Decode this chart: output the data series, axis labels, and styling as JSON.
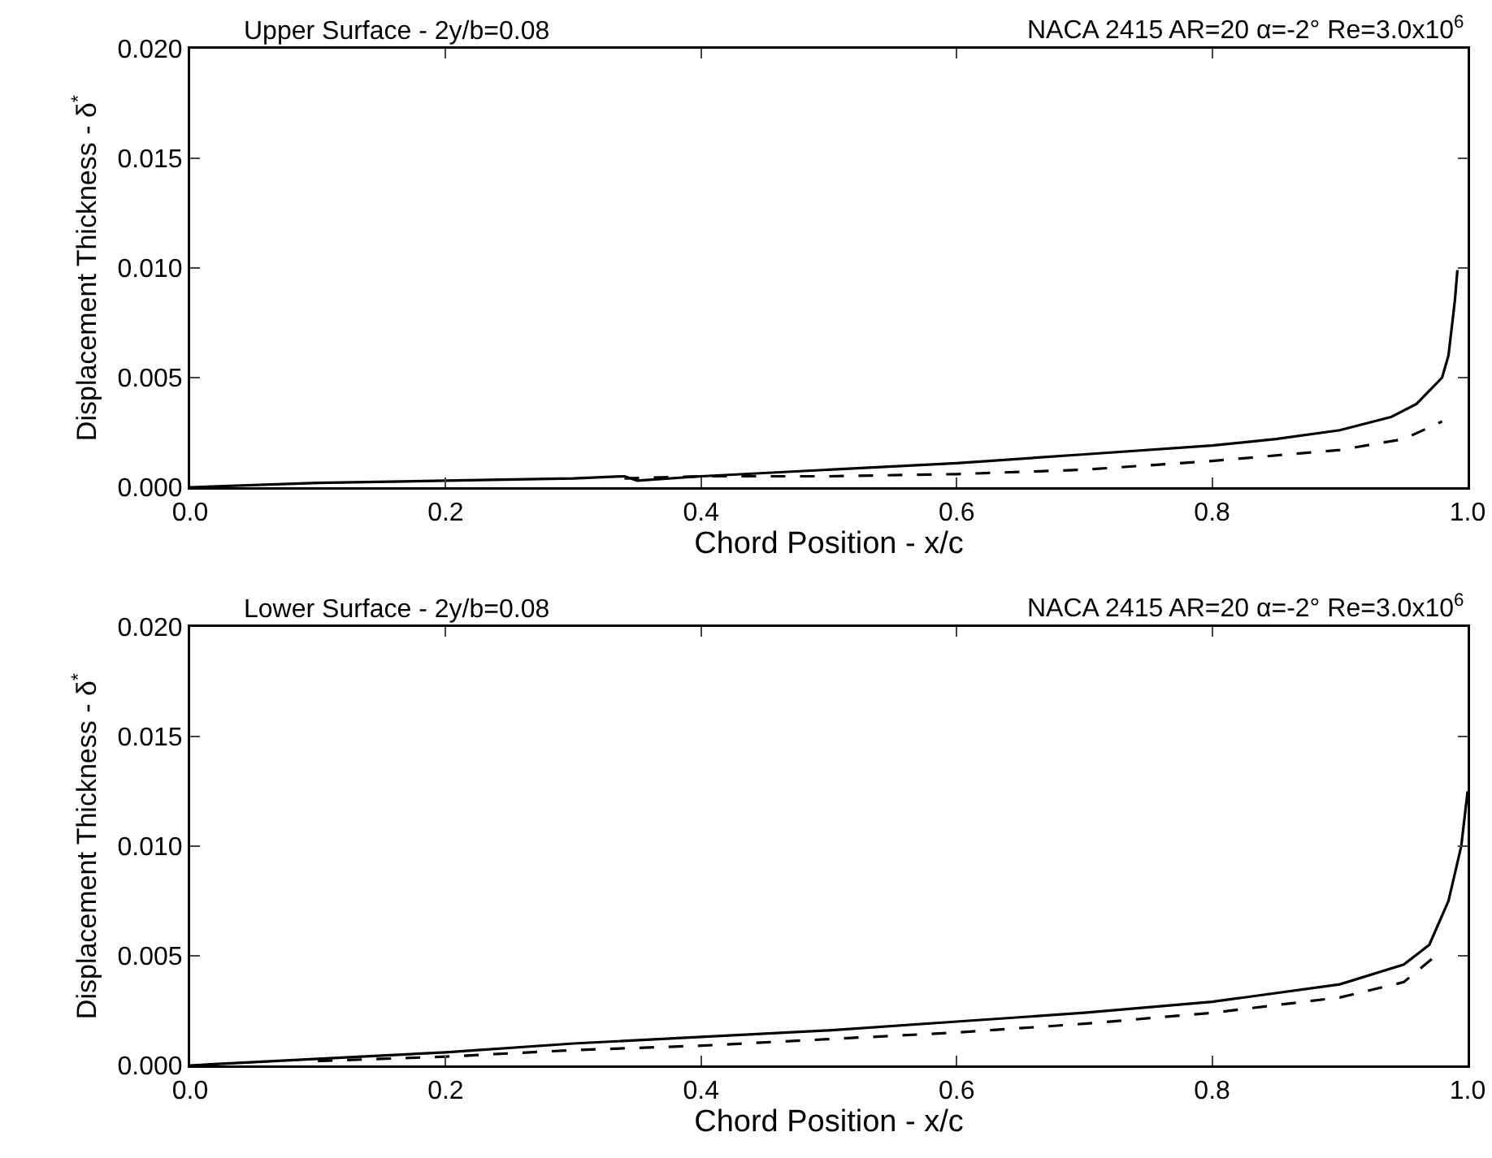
{
  "chart_data": [
    {
      "type": "line",
      "title": "Upper Surface - 2y/b=0.08",
      "subtitle": "NACA 2415 AR=20 α=-2° Re=3.0x10$^{6}$",
      "xlabel": "Chord Position - x/c",
      "ylabel": "Displacement Thickness - δ$^{*}$",
      "xlim": [
        0,
        1
      ],
      "ylim": [
        0,
        0.02
      ],
      "xticks": [
        {
          "value": 0,
          "label": "0.0"
        },
        {
          "value": 0.2,
          "label": "0.2"
        },
        {
          "value": 0.4,
          "label": "0.4"
        },
        {
          "value": 0.6,
          "label": "0.6"
        },
        {
          "value": 0.8,
          "label": "0.8"
        },
        {
          "value": 1,
          "label": "1.0"
        }
      ],
      "yticks": [
        {
          "value": 0,
          "label": "0.000"
        },
        {
          "value": 0.005,
          "label": "0.005"
        },
        {
          "value": 0.01,
          "label": "0.010"
        },
        {
          "value": 0.015,
          "label": "0.015"
        },
        {
          "value": 0.02,
          "label": "0.020"
        }
      ],
      "grid": false,
      "series": [
        {
          "color": "#000000",
          "line_style": "solid",
          "x": [
            0,
            0.1,
            0.2,
            0.3,
            0.34,
            0.35,
            0.4,
            0.5,
            0.6,
            0.7,
            0.8,
            0.85,
            0.9,
            0.94,
            0.96,
            0.98,
            0.985,
            0.99,
            0.992
          ],
          "values": [
            0,
            0.0002,
            0.0003,
            0.0004,
            0.0005,
            0.0003,
            0.0005,
            0.0008,
            0.0011,
            0.0015,
            0.0019,
            0.0022,
            0.0026,
            0.0032,
            0.0038,
            0.005,
            0.006,
            0.0085,
            0.0099
          ]
        },
        {
          "color": "#000000",
          "line_style": "dashed",
          "x": [
            0.34,
            0.4,
            0.5,
            0.6,
            0.7,
            0.8,
            0.9,
            0.95,
            0.98
          ],
          "values": [
            0.0004,
            0.0005,
            0.0005,
            0.0006,
            0.0008,
            0.0012,
            0.0017,
            0.0022,
            0.003
          ]
        }
      ]
    },
    {
      "type": "line",
      "title": "Lower Surface - 2y/b=0.08",
      "subtitle": "NACA 2415 AR=20 α=-2° Re=3.0x10$^{6}$",
      "xlabel": "Chord Position - x/c",
      "ylabel": "Displacement Thickness - δ$^{*}$",
      "xlim": [
        0,
        1
      ],
      "ylim": [
        0,
        0.02
      ],
      "xticks": [
        {
          "value": 0,
          "label": "0.0"
        },
        {
          "value": 0.2,
          "label": "0.2"
        },
        {
          "value": 0.4,
          "label": "0.4"
        },
        {
          "value": 0.6,
          "label": "0.6"
        },
        {
          "value": 0.8,
          "label": "0.8"
        },
        {
          "value": 1,
          "label": "1.0"
        }
      ],
      "yticks": [
        {
          "value": 0,
          "label": "0.000"
        },
        {
          "value": 0.005,
          "label": "0.005"
        },
        {
          "value": 0.01,
          "label": "0.010"
        },
        {
          "value": 0.015,
          "label": "0.015"
        },
        {
          "value": 0.02,
          "label": "0.020"
        }
      ],
      "grid": false,
      "series": [
        {
          "color": "#000000",
          "line_style": "solid",
          "x": [
            0,
            0.1,
            0.2,
            0.3,
            0.4,
            0.5,
            0.6,
            0.7,
            0.8,
            0.9,
            0.95,
            0.97,
            0.985,
            0.995,
            1
          ],
          "values": [
            0,
            0.0003,
            0.0006,
            0.001,
            0.0013,
            0.0016,
            0.002,
            0.0024,
            0.0029,
            0.0037,
            0.0046,
            0.0055,
            0.0075,
            0.01,
            0.0125
          ]
        },
        {
          "color": "#000000",
          "line_style": "dashed",
          "x": [
            0.1,
            0.2,
            0.3,
            0.4,
            0.5,
            0.6,
            0.7,
            0.8,
            0.9,
            0.95,
            0.975
          ],
          "values": [
            0.0002,
            0.0004,
            0.0007,
            0.0009,
            0.0012,
            0.0015,
            0.0019,
            0.0024,
            0.0031,
            0.0038,
            0.005
          ]
        }
      ]
    }
  ]
}
